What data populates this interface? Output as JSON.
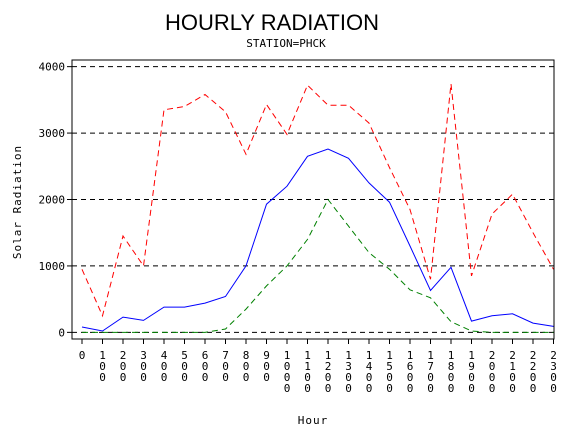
{
  "chart_data": {
    "type": "line",
    "title": "HOURLY RADIATION",
    "subtitle": "STATION=PHCK",
    "xlabel": "Hour",
    "ylabel": "Solar Radiation",
    "x": [
      0,
      100,
      200,
      300,
      400,
      500,
      600,
      700,
      800,
      900,
      1000,
      1100,
      1200,
      1300,
      1400,
      1500,
      1600,
      1700,
      1800,
      1900,
      2000,
      2100,
      2200,
      2300
    ],
    "x_tick_labels": [
      "0",
      "100",
      "200",
      "300",
      "400",
      "500",
      "600",
      "700",
      "800",
      "900",
      "1000",
      "1100",
      "1200",
      "1300",
      "1400",
      "1500",
      "1600",
      "1700",
      "1800",
      "1900",
      "2000",
      "2100",
      "2200",
      "2300"
    ],
    "y_ticks": [
      0,
      1000,
      2000,
      3000,
      4000
    ],
    "y_tick_labels": [
      "0",
      "1000",
      "2000",
      "3000",
      "4000"
    ],
    "ylim": [
      -100,
      4100
    ],
    "grid": "horizontal dashed at y ticks",
    "series": [
      {
        "color": "#ff0000",
        "style": "dashed",
        "values": [
          950,
          250,
          1450,
          1000,
          3350,
          3400,
          3580,
          3320,
          2680,
          3430,
          2980,
          3720,
          3420,
          3420,
          3150,
          2480,
          1850,
          800,
          3740,
          850,
          1780,
          2080,
          1500,
          950
        ]
      },
      {
        "color": "#0000ff",
        "style": "solid",
        "values": [
          80,
          20,
          230,
          180,
          380,
          380,
          440,
          540,
          1000,
          1930,
          2200,
          2650,
          2760,
          2620,
          2250,
          1960,
          1300,
          630,
          980,
          170,
          250,
          280,
          140,
          90
        ]
      },
      {
        "color": "#008000",
        "style": "dashed",
        "values": [
          0,
          0,
          0,
          0,
          0,
          0,
          0,
          50,
          350,
          700,
          1000,
          1400,
          2000,
          1600,
          1200,
          950,
          640,
          520,
          160,
          20,
          0,
          0,
          0,
          0
        ]
      }
    ]
  }
}
